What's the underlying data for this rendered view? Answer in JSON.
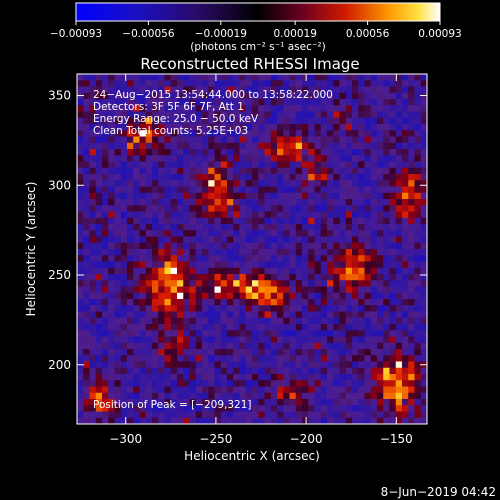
{
  "chart_data": {
    "type": "heatmap",
    "title": "Reconstructed RHESSI Image",
    "xlabel": "Heliocentric X (arcsec)",
    "ylabel": "Heliocentric Y (arcsec)",
    "xlim": [
      -327,
      -133
    ],
    "ylim": [
      167,
      362
    ],
    "x_ticks": [
      -300,
      -250,
      -200,
      -150
    ],
    "x_tick_labels": [
      "−300",
      "−250",
      "−200",
      "−150"
    ],
    "y_ticks": [
      200,
      250,
      300,
      350
    ],
    "y_tick_labels": [
      "200",
      "250",
      "300",
      "350"
    ],
    "colorbar": {
      "ticks": [
        -0.00093,
        -0.00056,
        -0.00019,
        0.00019,
        0.00056,
        0.00093
      ],
      "tick_labels": [
        "−0.00093",
        "−0.00056",
        "−0.00019",
        "0.00019",
        "0.00056",
        "0.00093"
      ],
      "label": "(photons cm⁻² s⁻¹ asec⁻²)",
      "vmin": -0.00093,
      "vmax": 0.00093
    },
    "annotations": [
      "24−Aug−2015 13:54:44.000 to 13:58:22.000",
      "Detectors: 3F 5F 6F 7F, Att 1",
      "Energy Range: 25.0 − 50.0 keV",
      "Clean    Total counts: 5.25E+03"
    ],
    "peak_text": "Position of Peak = [−209,321]",
    "peak_position": [
      -209,
      321
    ],
    "grid": false,
    "hot_spots": [
      {
        "x": -277,
        "y": 245,
        "sx": 9,
        "sy": 13,
        "v": 0.00093
      },
      {
        "x": -240,
        "y": 244,
        "sx": 14,
        "sy": 5,
        "v": 0.00085
      },
      {
        "x": -219,
        "y": 237,
        "sx": 8,
        "sy": 6,
        "v": 0.0008
      },
      {
        "x": -250,
        "y": 297,
        "sx": 7,
        "sy": 10,
        "v": 0.0009
      },
      {
        "x": -209,
        "y": 321,
        "sx": 9,
        "sy": 5,
        "v": 0.00093
      },
      {
        "x": -195,
        "y": 306,
        "sx": 6,
        "sy": 5,
        "v": 0.0006
      },
      {
        "x": -175,
        "y": 255,
        "sx": 8,
        "sy": 10,
        "v": 0.0008
      },
      {
        "x": -290,
        "y": 327,
        "sx": 7,
        "sy": 7,
        "v": 0.0008
      },
      {
        "x": -150,
        "y": 190,
        "sx": 9,
        "sy": 12,
        "v": 0.0009
      },
      {
        "x": -143,
        "y": 295,
        "sx": 6,
        "sy": 11,
        "v": 0.0008
      },
      {
        "x": -315,
        "y": 182,
        "sx": 6,
        "sy": 8,
        "v": 0.0007
      },
      {
        "x": -208,
        "y": 184,
        "sx": 8,
        "sy": 6,
        "v": 0.0006
      },
      {
        "x": -180,
        "y": 338,
        "sx": 5,
        "sy": 5,
        "v": 0.0006
      },
      {
        "x": -275,
        "y": 210,
        "sx": 6,
        "sy": 6,
        "v": 0.0005
      }
    ]
  },
  "footer": {
    "date": "8−Jun−2019 04:42"
  }
}
